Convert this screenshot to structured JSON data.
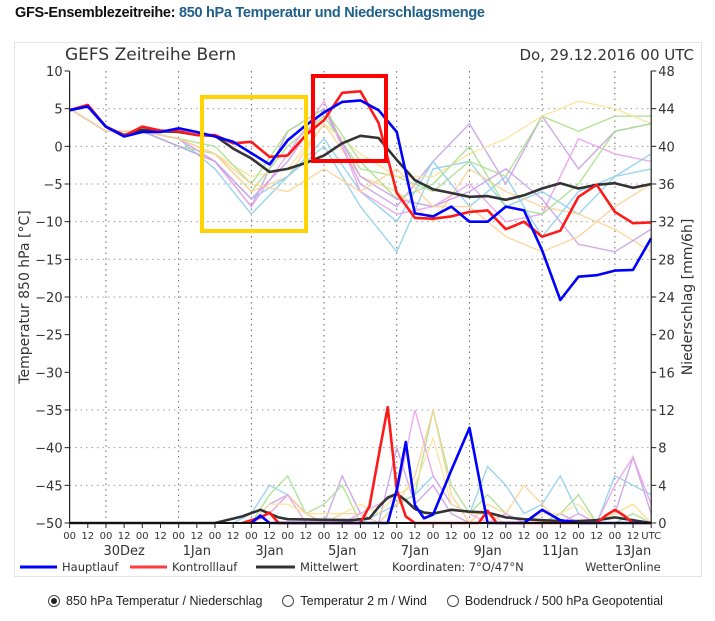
{
  "header": {
    "label": "GFS-Ensemblezeitreihe:",
    "value": "850 hPa Temperatur und Niederschlagsmenge"
  },
  "chart_data": {
    "type": "line",
    "title": "GEFS Zeitreihe Bern",
    "run_label": "Do, 29.12.2016 00 UTC",
    "ylabel": "Temperatur 850 hPa [°C]",
    "y2label": "Niederschlag [mm/6h]",
    "ylim": [
      -50,
      10
    ],
    "y2lim": [
      0,
      48
    ],
    "yticks": [
      10,
      5,
      0,
      -5,
      -10,
      -15,
      -20,
      -25,
      -30,
      -35,
      -40,
      -45,
      -50
    ],
    "y2ticks": [
      48,
      44,
      40,
      36,
      32,
      28,
      24,
      20,
      16,
      12,
      8,
      4,
      0
    ],
    "xlim": [
      "2016-12-29T00",
      "2017-01-14T00"
    ],
    "x_tick_labels": [
      "00",
      "12",
      "00",
      "12",
      "00",
      "12",
      "00",
      "12",
      "00",
      "12",
      "00",
      "12",
      "00",
      "12",
      "00",
      "12",
      "00",
      "12",
      "00",
      "12",
      "00",
      "12",
      "00",
      "12",
      "00",
      "12",
      "00",
      "12",
      "00",
      "12",
      "00",
      "12",
      "UTC"
    ],
    "date_labels": [
      {
        "label": "30Dez",
        "time": "2016-12-30T12"
      },
      {
        "label": "1Jan",
        "time": "2017-01-01T12"
      },
      {
        "label": "3Jan",
        "time": "2017-01-03T12"
      },
      {
        "label": "5Jan",
        "time": "2017-01-05T12"
      },
      {
        "label": "7Jan",
        "time": "2017-01-07T12"
      },
      {
        "label": "9Jan",
        "time": "2017-01-09T12"
      },
      {
        "label": "11Jan",
        "time": "2017-01-11T12"
      },
      {
        "label": "13Jan",
        "time": "2017-01-13T12"
      }
    ],
    "grid": true,
    "legend": {
      "position": "bottom",
      "entries": [
        {
          "name": "Hauptlauf",
          "color": "#0000ff"
        },
        {
          "name": "Kontrolllauf",
          "color": "#ff0000"
        },
        {
          "name": "Mittelwert",
          "color": "#333333"
        }
      ],
      "coordinates": "Koordinaten: 7°O/47°N",
      "source": "WetterOnline"
    },
    "times": [
      "2016-12-29T00",
      "2016-12-29T12",
      "2016-12-30T00",
      "2016-12-30T12",
      "2016-12-31T00",
      "2016-12-31T12",
      "2017-01-01T00",
      "2017-01-01T12",
      "2017-01-02T00",
      "2017-01-02T12",
      "2017-01-03T00",
      "2017-01-03T12",
      "2017-01-04T00",
      "2017-01-04T12",
      "2017-01-05T00",
      "2017-01-05T12",
      "2017-01-06T00",
      "2017-01-06T12",
      "2017-01-07T00",
      "2017-01-07T12",
      "2017-01-08T00",
      "2017-01-08T12",
      "2017-01-09T00",
      "2017-01-09T12",
      "2017-01-10T00",
      "2017-01-10T12",
      "2017-01-11T00",
      "2017-01-11T12",
      "2017-01-12T00",
      "2017-01-12T12",
      "2017-01-13T00",
      "2017-01-13T12",
      "2017-01-14T00"
    ],
    "daily_times": [
      "2016-12-29T00",
      "2016-12-30T00",
      "2016-12-31T00",
      "2017-01-01T00",
      "2017-01-02T00",
      "2017-01-03T00",
      "2017-01-04T00",
      "2017-01-05T00",
      "2017-01-06T00",
      "2017-01-07T00",
      "2017-01-08T00",
      "2017-01-09T00",
      "2017-01-10T00",
      "2017-01-11T00",
      "2017-01-12T00",
      "2017-01-13T00",
      "2017-01-14T00"
    ],
    "temperature": {
      "Hauptlauf": [
        4.8,
        5.3,
        2.6,
        1.3,
        1.9,
        1.9,
        2.4,
        1.9,
        1.3,
        0.6,
        -0.9,
        -2.4,
        0.8,
        2.8,
        4.5,
        5.9,
        6.1,
        4.8,
        1.9,
        -8.9,
        -9.3,
        -8.0,
        -10.0,
        -10.0,
        -8.0,
        -8.5,
        -13.8,
        -20.4,
        -17.3,
        -17.1,
        -16.5,
        -16.4,
        -12.2
      ],
      "Kontrolllauf": [
        4.8,
        5.5,
        2.6,
        1.4,
        2.6,
        2.1,
        2.0,
        1.5,
        1.5,
        0.4,
        0.6,
        -1.4,
        -1.2,
        1.5,
        3.5,
        7.1,
        7.3,
        3.1,
        -6.2,
        -9.5,
        -9.6,
        -9.3,
        -8.7,
        -8.5,
        -11.0,
        -10.0,
        -12.0,
        -11.2,
        -6.7,
        -5.1,
        -8.7,
        -10.2,
        -10.1
      ],
      "Mittelwert": [
        4.8,
        5.3,
        2.6,
        1.5,
        2.2,
        2.0,
        1.9,
        1.5,
        1.4,
        -0.3,
        -1.6,
        -3.4,
        -3.0,
        -2.2,
        -1.2,
        0.4,
        1.4,
        1.1,
        -1.8,
        -4.5,
        -5.7,
        -6.2,
        -6.7,
        -6.6,
        -7.1,
        -6.5,
        -5.6,
        -4.9,
        -5.6,
        -5.1,
        -4.9,
        -5.5,
        -5.0
      ],
      "members": [
        {
          "color": "#8fd0ec",
          "values": [
            5,
            2,
            2,
            1,
            -3,
            -9,
            -4,
            0,
            -8,
            -14,
            -3,
            -2,
            -8,
            -6,
            -9,
            -4,
            -1
          ]
        },
        {
          "color": "#c9a0e6",
          "values": [
            5,
            2,
            2,
            1,
            -2,
            -8,
            2,
            5,
            -5,
            -8,
            -2,
            3,
            -5,
            4,
            -3,
            2,
            3
          ]
        },
        {
          "color": "#a9e08e",
          "values": [
            5,
            2,
            2,
            0,
            -1,
            -6,
            0,
            4,
            -3,
            -4,
            -6,
            -2,
            -4,
            4,
            2,
            4,
            4
          ]
        },
        {
          "color": "#fdd296",
          "values": [
            5,
            2,
            2,
            1,
            -1,
            -6,
            -4,
            3,
            -4,
            -6,
            -10,
            -3,
            -6,
            -8,
            -9,
            -11,
            -14
          ]
        },
        {
          "color": "#8fd0ec",
          "values": [
            5,
            2,
            2,
            0,
            -2,
            -7,
            -4,
            1,
            -6,
            -10,
            -2,
            -8,
            -4,
            -12,
            -6,
            -4,
            -3
          ]
        },
        {
          "color": "#fbe29a",
          "values": [
            5,
            2,
            2,
            1,
            -1,
            -4,
            -3,
            3,
            -1,
            -4,
            -4,
            -1,
            1,
            4,
            6,
            5,
            3
          ]
        },
        {
          "color": "#eaa2ea",
          "values": [
            5,
            2,
            2,
            1,
            -2,
            -8,
            -1,
            6,
            -6,
            -9,
            -8,
            -5,
            -10,
            -9,
            1,
            -1,
            -2
          ]
        },
        {
          "color": "#a9e08e",
          "values": [
            5,
            2,
            2,
            1,
            0,
            -5,
            2,
            5,
            -2,
            -7,
            -5,
            0,
            -8,
            -9,
            -5,
            2,
            3
          ]
        },
        {
          "color": "#c9a0e6",
          "values": [
            5,
            2,
            2,
            0,
            -2,
            -7,
            -2,
            5,
            -4,
            -7,
            -8,
            -6,
            -3,
            -7,
            -13,
            -14,
            -11
          ]
        },
        {
          "color": "#fdd296",
          "values": [
            5,
            2,
            2,
            1,
            -1,
            -5,
            -6,
            -3,
            -6,
            -3,
            -8,
            -8,
            -12,
            -14,
            -12,
            -8,
            -5
          ]
        }
      ]
    },
    "precipitation": {
      "Hauptlauf": [
        [
          "2017-01-03T00",
          0
        ],
        [
          "2017-01-03T06",
          0.8
        ],
        [
          "2017-01-03T12",
          0
        ],
        [
          "2017-01-06T18",
          0
        ],
        [
          "2017-01-07T00",
          3.5
        ],
        [
          "2017-01-07T06",
          8.6
        ],
        [
          "2017-01-07T12",
          1.9
        ],
        [
          "2017-01-07T18",
          0.5
        ],
        [
          "2017-01-08T00",
          0.9
        ],
        [
          "2017-01-08T12",
          5.6
        ],
        [
          "2017-01-09T00",
          10.1
        ],
        [
          "2017-01-09T12",
          0
        ],
        [
          "2017-01-10T12",
          0
        ],
        [
          "2017-01-11T00",
          1.4
        ],
        [
          "2017-01-11T12",
          0.3
        ],
        [
          "2017-01-12T00",
          0
        ],
        [
          "2017-01-14T00",
          0
        ]
      ],
      "Kontrolllauf": [
        [
          "2017-01-02T18",
          0
        ],
        [
          "2017-01-03T06",
          0.6
        ],
        [
          "2017-01-03T12",
          1.1
        ],
        [
          "2017-01-03T18",
          0
        ],
        [
          "2017-01-06T00",
          0
        ],
        [
          "2017-01-06T06",
          1.8
        ],
        [
          "2017-01-06T12",
          7.1
        ],
        [
          "2017-01-06T18",
          12.3
        ],
        [
          "2017-01-07T00",
          3.5
        ],
        [
          "2017-01-07T06",
          0.7
        ],
        [
          "2017-01-07T12",
          0
        ],
        [
          "2017-01-09T06",
          0
        ],
        [
          "2017-01-09T12",
          1.3
        ],
        [
          "2017-01-09T18",
          0
        ],
        [
          "2017-01-12T12",
          0
        ],
        [
          "2017-01-12T18",
          0.8
        ],
        [
          "2017-01-13T00",
          1.4
        ],
        [
          "2017-01-13T06",
          0.8
        ],
        [
          "2017-01-13T12",
          0
        ],
        [
          "2017-01-14T00",
          0
        ]
      ],
      "Mittelwert": [
        [
          "2016-12-29T00",
          0
        ],
        [
          "2017-01-02T00",
          0
        ],
        [
          "2017-01-02T18",
          0.7
        ],
        [
          "2017-01-03T06",
          1.4
        ],
        [
          "2017-01-03T12",
          1.0
        ],
        [
          "2017-01-03T18",
          0.6
        ],
        [
          "2017-01-04T00",
          0.4
        ],
        [
          "2017-01-05T18",
          0.3
        ],
        [
          "2017-01-06T06",
          0.5
        ],
        [
          "2017-01-06T12",
          1.7
        ],
        [
          "2017-01-06T18",
          2.7
        ],
        [
          "2017-01-07T00",
          3.1
        ],
        [
          "2017-01-07T06",
          2.4
        ],
        [
          "2017-01-07T12",
          1.5
        ],
        [
          "2017-01-07T18",
          1.1
        ],
        [
          "2017-01-08T00",
          1.0
        ],
        [
          "2017-01-08T12",
          1.4
        ],
        [
          "2017-01-09T00",
          1.2
        ],
        [
          "2017-01-09T12",
          1.1
        ],
        [
          "2017-01-10T00",
          0.6
        ],
        [
          "2017-01-10T12",
          0.4
        ],
        [
          "2017-01-11T00",
          0.3
        ],
        [
          "2017-01-11T12",
          0.2
        ],
        [
          "2017-01-12T00",
          0.2
        ],
        [
          "2017-01-12T12",
          0.3
        ],
        [
          "2017-01-13T00",
          0.6
        ],
        [
          "2017-01-13T12",
          0.3
        ],
        [
          "2017-01-14T00",
          0
        ]
      ],
      "members": [
        {
          "color": "#8fd0ec",
          "values": [
            0,
            0,
            0,
            0,
            0,
            0,
            0,
            0,
            0,
            0,
            1,
            4,
            3,
            1,
            0,
            0,
            0,
            1,
            2,
            3,
            5,
            2,
            1,
            6,
            4,
            1,
            2,
            5,
            1,
            0,
            5,
            4,
            3
          ]
        },
        {
          "color": "#c9a0e6",
          "values": [
            0,
            0,
            0,
            0,
            0,
            0,
            0,
            0,
            0,
            0,
            0,
            2,
            3,
            1,
            0,
            5,
            1,
            0,
            8,
            2,
            4,
            1,
            0,
            0,
            0,
            0,
            0,
            1,
            0,
            0,
            1,
            7,
            1
          ]
        },
        {
          "color": "#a9e08e",
          "values": [
            0,
            0,
            0,
            0,
            0,
            0,
            0,
            0,
            0,
            0,
            0,
            3,
            5,
            1,
            2,
            4,
            0,
            0,
            2,
            3,
            12,
            4,
            1,
            3,
            1,
            0,
            0,
            1,
            3,
            0,
            0,
            1,
            0
          ]
        },
        {
          "color": "#fdd296",
          "values": [
            0,
            0,
            0,
            0,
            0,
            0,
            0,
            0,
            0,
            0,
            0,
            1,
            3,
            1,
            0,
            1,
            1,
            0,
            2,
            5,
            12,
            3,
            0,
            2,
            1,
            4,
            2,
            0,
            0,
            0,
            1,
            2,
            0
          ]
        },
        {
          "color": "#eaa2ea",
          "values": [
            0,
            0,
            0,
            0,
            0,
            0,
            0,
            0,
            0,
            0,
            0,
            1,
            3,
            0,
            0,
            0,
            1,
            2,
            3,
            12,
            5,
            2,
            1,
            0,
            1,
            0,
            0,
            0,
            1,
            0,
            4,
            7,
            2
          ]
        },
        {
          "color": "#fbe29a",
          "values": [
            0,
            0,
            0,
            0,
            0,
            0,
            0,
            0,
            0,
            0,
            0,
            2,
            2,
            1,
            1,
            1,
            2,
            1,
            3,
            4,
            9,
            2,
            1,
            1,
            0,
            0,
            1,
            1,
            2,
            0,
            1,
            2,
            0
          ]
        }
      ]
    },
    "annotations": [
      {
        "color": "#ffd400"
      },
      {
        "color": "#ff0000"
      }
    ]
  },
  "options": [
    {
      "label": "850 hPa Temperatur / Niederschlag",
      "selected": true
    },
    {
      "label": "Temperatur 2 m / Wind",
      "selected": false
    },
    {
      "label": "Bodendruck / 500 hPa Geopotential",
      "selected": false
    }
  ]
}
